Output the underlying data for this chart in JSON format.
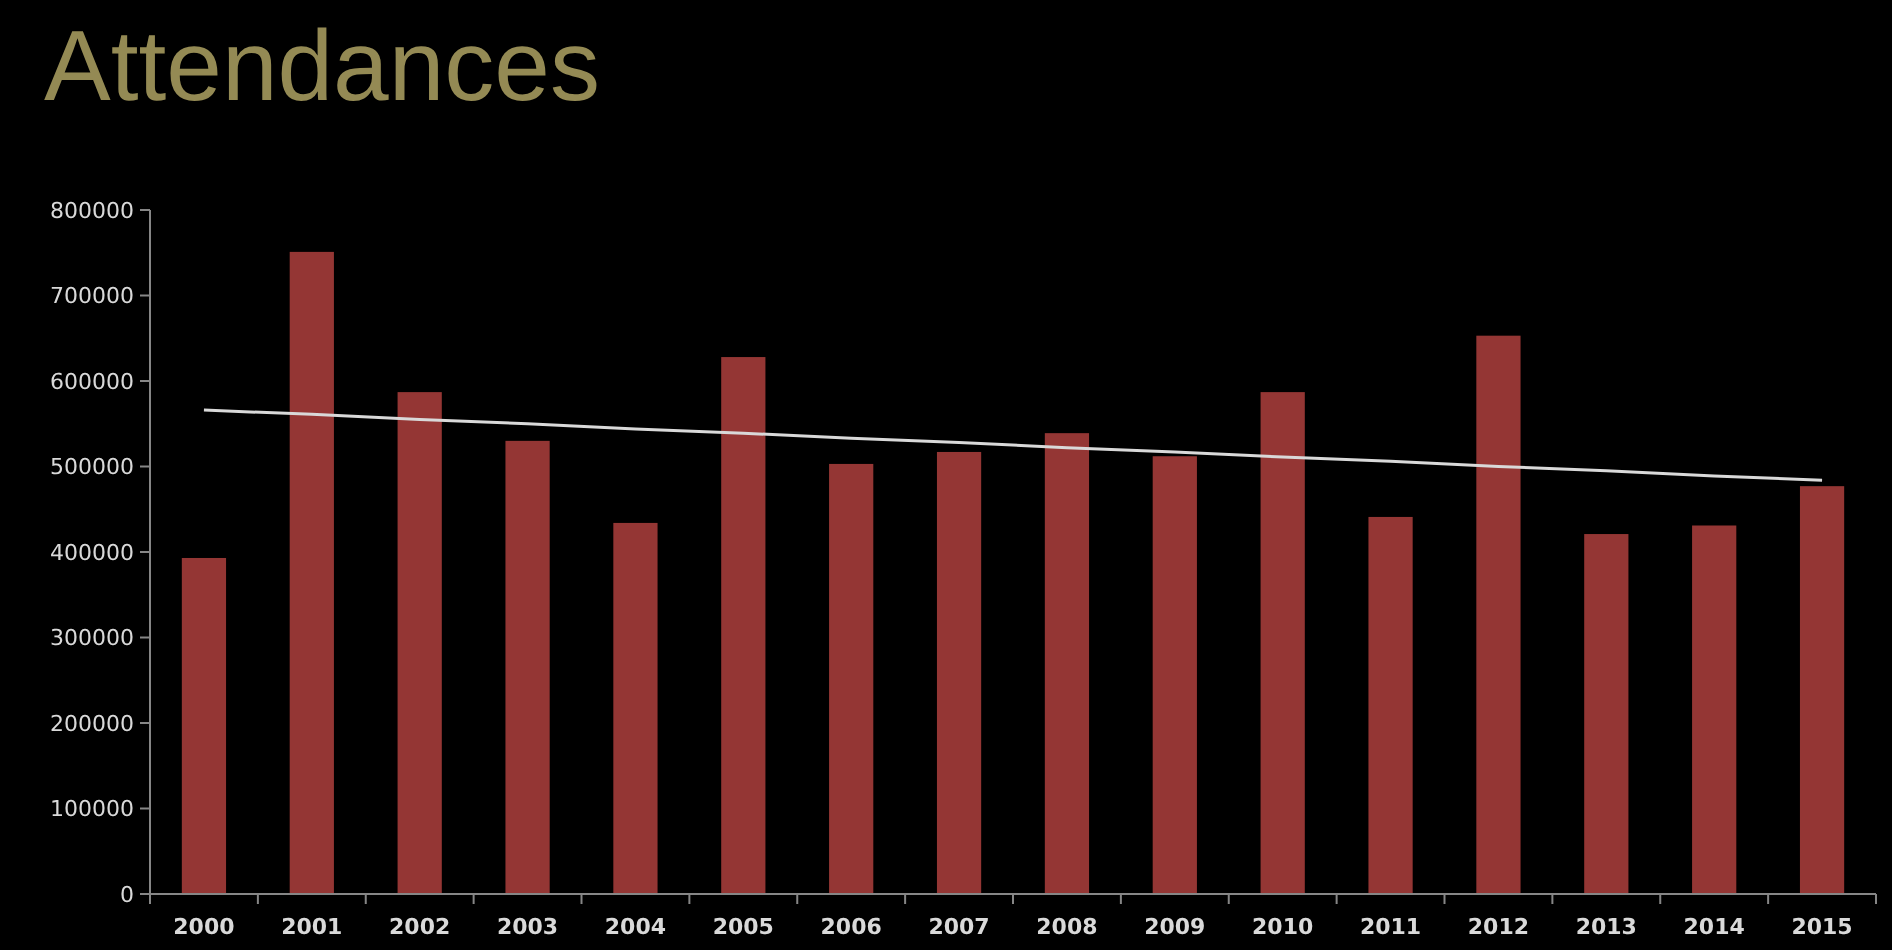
{
  "chart_data": {
    "type": "bar",
    "title": "Attendances",
    "categories": [
      "2000",
      "2001",
      "2002",
      "2003",
      "2004",
      "2005",
      "2006",
      "2007",
      "2008",
      "2009",
      "2010",
      "2011",
      "2012",
      "2013",
      "2014",
      "2015"
    ],
    "series": [
      {
        "color": "#943634",
        "values": [
          393000,
          751000,
          587000,
          530000,
          434000,
          628000,
          503000,
          517000,
          539000,
          512000,
          587000,
          441000,
          653000,
          421000,
          431000,
          477000
        ]
      },
      {
        "type": "line",
        "color": "#d9d9d9",
        "values": [
          566000,
          561000,
          555000,
          550000,
          544000,
          539000,
          533000,
          528000,
          522000,
          517000,
          511000,
          506000,
          500000,
          495000,
          489000,
          484000
        ]
      }
    ],
    "ylim": [
      0,
      800000
    ],
    "yticks": [
      0,
      100000,
      200000,
      300000,
      400000,
      500000,
      600000,
      700000,
      800000
    ],
    "grid": false
  }
}
